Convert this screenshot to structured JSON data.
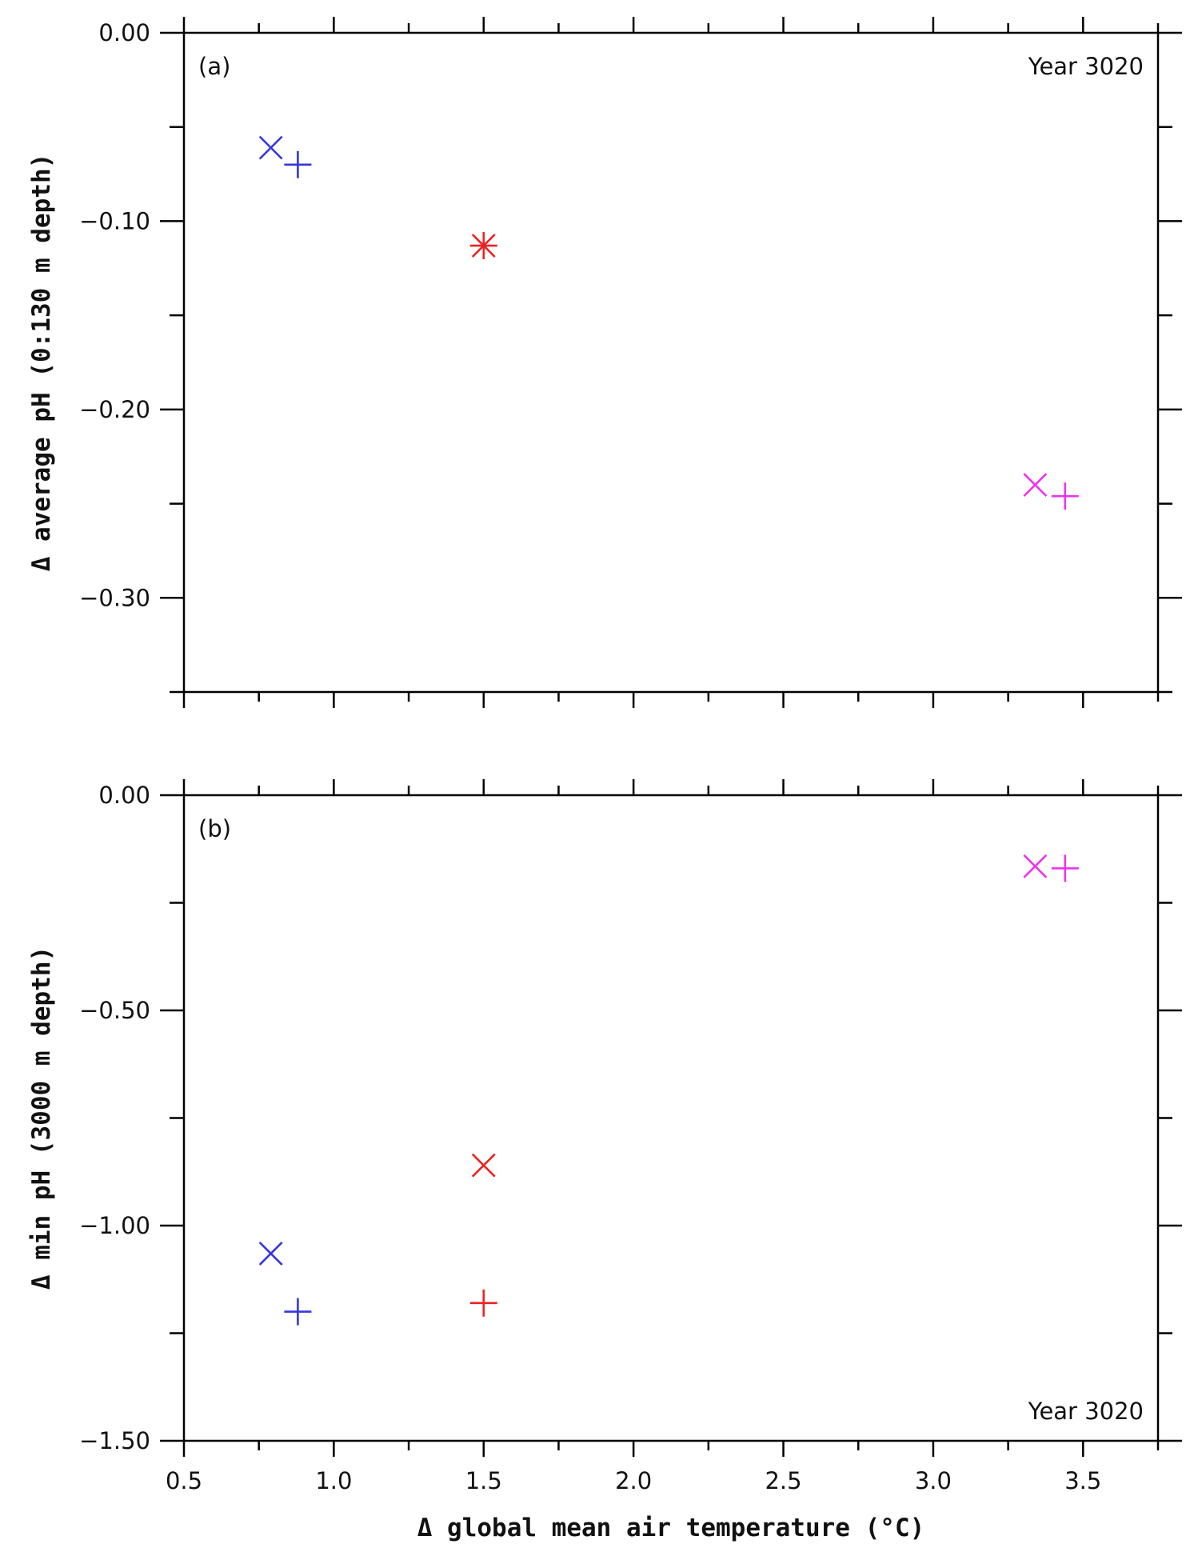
{
  "colors": {
    "blue": "#3535e0",
    "red": "#ee2222",
    "magenta": "#ee33ee"
  },
  "chart_data": [
    {
      "type": "scatter",
      "panel_label": "(a)",
      "annotation": "Year 3020",
      "ylabel": "Δ average pH (0:130 m depth)",
      "xlim": [
        0.5,
        3.75
      ],
      "ylim": [
        -0.35,
        0.0
      ],
      "y_ticks": [
        "0.00",
        "−0.10",
        "−0.20",
        "−0.30"
      ],
      "y_tick_values": [
        0.0,
        -0.1,
        -0.2,
        -0.3
      ],
      "y_minor_tick_values": [
        -0.05,
        -0.15,
        -0.25,
        -0.35
      ],
      "points": [
        {
          "x": 0.79,
          "y": -0.061,
          "marker": "x",
          "color": "blue"
        },
        {
          "x": 0.88,
          "y": -0.07,
          "marker": "+",
          "color": "blue"
        },
        {
          "x": 1.5,
          "y": -0.113,
          "marker": "asterisk",
          "color": "red"
        },
        {
          "x": 3.34,
          "y": -0.24,
          "marker": "x",
          "color": "magenta"
        },
        {
          "x": 3.44,
          "y": -0.246,
          "marker": "+",
          "color": "magenta"
        }
      ]
    },
    {
      "type": "scatter",
      "panel_label": "(b)",
      "annotation": "Year 3020",
      "ylabel": "Δ min pH (3000 m depth)",
      "xlabel": "Δ global mean air temperature (°C)",
      "xlim": [
        0.5,
        3.75
      ],
      "ylim": [
        -1.5,
        0.0
      ],
      "x_ticks": [
        "0.5",
        "1.0",
        "1.5",
        "2.0",
        "2.5",
        "3.0",
        "3.5"
      ],
      "x_tick_values": [
        0.5,
        1.0,
        1.5,
        2.0,
        2.5,
        3.0,
        3.5
      ],
      "y_ticks": [
        "0.00",
        "−0.50",
        "−1.00",
        "−1.50"
      ],
      "y_tick_values": [
        0.0,
        -0.5,
        -1.0,
        -1.5
      ],
      "y_minor_tick_values": [
        -0.25,
        -0.75,
        -1.25
      ],
      "points": [
        {
          "x": 0.79,
          "y": -1.065,
          "marker": "x",
          "color": "blue"
        },
        {
          "x": 0.88,
          "y": -1.2,
          "marker": "+",
          "color": "blue"
        },
        {
          "x": 1.5,
          "y": -0.86,
          "marker": "x",
          "color": "red"
        },
        {
          "x": 1.5,
          "y": -1.18,
          "marker": "+",
          "color": "red"
        },
        {
          "x": 3.34,
          "y": -0.165,
          "marker": "x",
          "color": "magenta"
        },
        {
          "x": 3.44,
          "y": -0.17,
          "marker": "+",
          "color": "magenta"
        }
      ]
    }
  ]
}
